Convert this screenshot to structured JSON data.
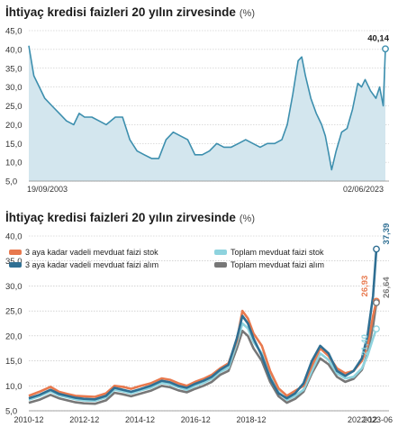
{
  "chart_data": [
    {
      "type": "area",
      "title": "İhtiyaç kredisi faizleri 20 yılın zirvesinde",
      "unit": "(%)",
      "ylim": [
        5,
        45
      ],
      "yticks": [
        "5,0",
        "10,0",
        "15,0",
        "20,0",
        "25,0",
        "30,0",
        "35,0",
        "40,0",
        "45,0"
      ],
      "x_labels": [
        "19/09/2003",
        "02/06/2023"
      ],
      "end_label": "40,14",
      "grid": true,
      "colors": {
        "line": "#3d8fae",
        "fill": "#d3e6ee"
      },
      "series": [
        {
          "x": [
            2003.72,
            2004.0,
            2004.3,
            2004.6,
            2005.0,
            2005.4,
            2005.8,
            2006.2,
            2006.5,
            2006.8,
            2007.2,
            2007.6,
            2008.0,
            2008.5,
            2008.9,
            2009.3,
            2009.7,
            2010.1,
            2010.5,
            2010.9,
            2011.3,
            2011.7,
            2012.1,
            2012.5,
            2012.9,
            2013.3,
            2013.7,
            2014.1,
            2014.5,
            2014.9,
            2015.3,
            2015.7,
            2016.1,
            2016.5,
            2016.9,
            2017.3,
            2017.7,
            2018.0,
            2018.3,
            2018.6,
            2018.8,
            2019.0,
            2019.3,
            2019.6,
            2019.9,
            2020.1,
            2020.3,
            2020.45,
            2020.7,
            2021.0,
            2021.3,
            2021.6,
            2021.9,
            2022.1,
            2022.3,
            2022.6,
            2022.9,
            2023.1,
            2023.3,
            2023.42
          ],
          "y": [
            41,
            33,
            30,
            27,
            25,
            23,
            21,
            20,
            23,
            22,
            22,
            21,
            20,
            22,
            22,
            16,
            13,
            12,
            11,
            11,
            16,
            18,
            17,
            16,
            12,
            12,
            13,
            15,
            14,
            14,
            15,
            16,
            15,
            14,
            15,
            15,
            16,
            20,
            28,
            37,
            38,
            33,
            27,
            23,
            20,
            17,
            12,
            8,
            13,
            18,
            19,
            24,
            31,
            30,
            32,
            29,
            27,
            30,
            25,
            40.14
          ]
        }
      ]
    },
    {
      "type": "line",
      "title": "İhtiyaç kredisi faizleri 20 yılın zirvesinde",
      "unit": "(%)",
      "ylim": [
        5,
        40
      ],
      "yticks": [
        "5,0",
        "10,0",
        "15,0",
        "20,0",
        "25,0",
        "30,0",
        "35,0",
        "40,0"
      ],
      "categories": [
        "2010-12",
        "2012-12",
        "2014-12",
        "2016-12",
        "2018-12",
        "2022-12",
        "2023-06"
      ],
      "grid": true,
      "legend_position": "top",
      "x": [
        2010.92,
        2011.3,
        2011.7,
        2012.0,
        2012.3,
        2012.6,
        2012.9,
        2013.3,
        2013.7,
        2014.0,
        2014.3,
        2014.6,
        2014.9,
        2015.3,
        2015.7,
        2016.0,
        2016.3,
        2016.6,
        2016.9,
        2017.2,
        2017.5,
        2017.8,
        2018.1,
        2018.4,
        2018.6,
        2018.8,
        2019.0,
        2019.3,
        2019.6,
        2019.9,
        2020.2,
        2020.5,
        2020.8,
        2021.1,
        2021.4,
        2021.7,
        2022.0,
        2022.3,
        2022.6,
        2022.9,
        2023.1,
        2023.3,
        2023.42
      ],
      "series": [
        {
          "name": "3 aya kadar vadeli mevduat faizi stok",
          "color": "#e8794e",
          "end_label": "26,93",
          "values": [
            8.0,
            8.8,
            9.8,
            8.8,
            8.4,
            8.0,
            7.9,
            7.8,
            8.5,
            10.0,
            9.8,
            9.4,
            9.9,
            10.5,
            11.5,
            11.2,
            10.5,
            10.0,
            10.8,
            11.4,
            12.2,
            13.5,
            14.5,
            19.0,
            25.0,
            23.5,
            20.5,
            18.0,
            13.0,
            9.5,
            8.0,
            9.0,
            10.0,
            14.0,
            17.5,
            16.0,
            13.5,
            12.5,
            13.0,
            15.0,
            18.0,
            24.0,
            26.93
          ]
        },
        {
          "name": "3 aya kadar vadeli mevduat faizi alım",
          "color": "#2f6f93",
          "end_label": "37,39",
          "values": [
            7.5,
            8.2,
            9.2,
            8.4,
            8.0,
            7.6,
            7.4,
            7.3,
            8.0,
            9.6,
            9.2,
            8.8,
            9.3,
            10.0,
            11.0,
            10.7,
            10.0,
            9.6,
            10.4,
            11.0,
            11.8,
            13.2,
            14.2,
            19.5,
            24.0,
            22.5,
            19.5,
            16.0,
            11.5,
            8.5,
            7.5,
            8.5,
            10.5,
            15.0,
            18.0,
            16.5,
            13.0,
            12.0,
            13.0,
            15.5,
            20.0,
            28.0,
            37.39
          ]
        },
        {
          "name": "Toplam mevduat faizi stok",
          "color": "#8ed3de",
          "end_label": "21,40",
          "values": [
            7.2,
            7.9,
            8.9,
            8.1,
            7.7,
            7.3,
            7.1,
            7.0,
            7.7,
            9.2,
            8.9,
            8.5,
            9.0,
            9.6,
            10.6,
            10.3,
            9.7,
            9.2,
            10.0,
            10.6,
            11.4,
            12.8,
            13.6,
            18.5,
            22.5,
            21.5,
            18.8,
            16.5,
            12.0,
            8.8,
            7.2,
            8.0,
            9.2,
            13.0,
            16.5,
            15.2,
            12.5,
            11.5,
            11.8,
            13.5,
            16.0,
            19.5,
            21.4
          ]
        },
        {
          "name": "Toplam mevduat faizi alım",
          "color": "#777777",
          "end_label": "26,64",
          "values": [
            6.6,
            7.2,
            8.2,
            7.5,
            7.1,
            6.7,
            6.5,
            6.4,
            7.1,
            8.6,
            8.3,
            7.9,
            8.4,
            9.0,
            10.0,
            9.7,
            9.1,
            8.7,
            9.4,
            10.0,
            10.8,
            12.2,
            13.0,
            17.5,
            21.0,
            20.0,
            17.5,
            15.0,
            10.8,
            7.9,
            6.6,
            7.4,
            8.8,
            12.5,
            15.5,
            14.3,
            11.8,
            10.8,
            11.4,
            13.2,
            16.5,
            22.0,
            26.64
          ]
        }
      ]
    }
  ]
}
